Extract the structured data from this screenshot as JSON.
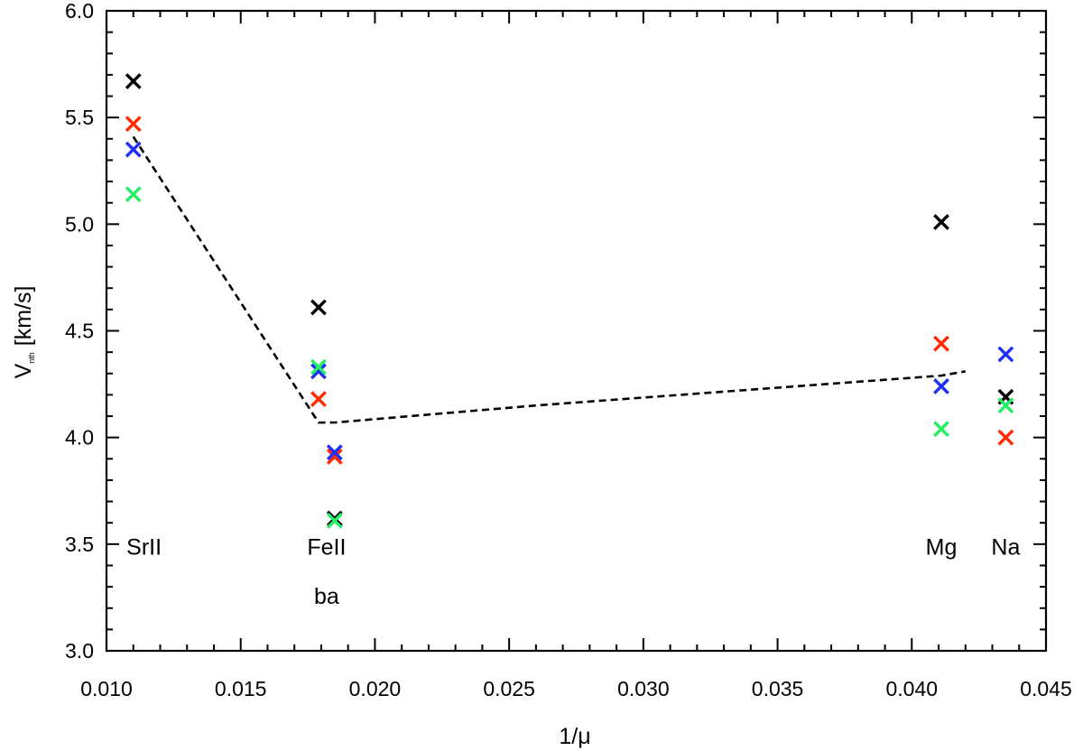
{
  "chart_data": {
    "type": "scatter",
    "title": "",
    "xlabel": "1/μ",
    "ylabel": "V",
    "ylabel_subscript": "nth",
    "ylabel_unit": " [km/s]",
    "xlim": [
      0.01,
      0.045
    ],
    "ylim": [
      3.0,
      6.0
    ],
    "x_ticks": [
      0.01,
      0.015,
      0.02,
      0.025,
      0.03,
      0.035,
      0.04,
      0.045
    ],
    "x_tick_labels": [
      "0.010",
      "0.015",
      "0.020",
      "0.025",
      "0.030",
      "0.035",
      "0.040",
      "0.045"
    ],
    "y_ticks": [
      3.0,
      3.5,
      4.0,
      4.5,
      5.0,
      5.5,
      6.0
    ],
    "y_tick_labels": [
      "3.0",
      "3.5",
      "4.0",
      "4.5",
      "5.0",
      "5.5",
      "6.0"
    ],
    "grid": false,
    "marker": "x",
    "series": [
      {
        "color": "#000000",
        "points": [
          [
            0.011,
            5.67
          ],
          [
            0.0179,
            4.61
          ],
          [
            0.0185,
            3.62
          ],
          [
            0.0411,
            5.01
          ],
          [
            0.0435,
            4.19
          ]
        ]
      },
      {
        "color": "#ff2a00",
        "points": [
          [
            0.011,
            5.47
          ],
          [
            0.0179,
            4.18
          ],
          [
            0.0185,
            3.91
          ],
          [
            0.0411,
            4.44
          ],
          [
            0.0435,
            4.0
          ]
        ]
      },
      {
        "color": "#1f2ff5",
        "points": [
          [
            0.011,
            5.35
          ],
          [
            0.0179,
            4.31
          ],
          [
            0.0185,
            3.93
          ],
          [
            0.0411,
            4.24
          ],
          [
            0.0435,
            4.39
          ]
        ]
      },
      {
        "color": "#22ee66",
        "points": [
          [
            0.011,
            5.14
          ],
          [
            0.0179,
            4.33
          ],
          [
            0.0185,
            3.61
          ],
          [
            0.0411,
            4.04
          ],
          [
            0.0435,
            4.15
          ]
        ]
      }
    ],
    "trend_line": {
      "style": "dashed",
      "color": "#000000",
      "points": [
        [
          0.011,
          5.41
        ],
        [
          0.0179,
          4.07
        ],
        [
          0.0185,
          4.07
        ],
        [
          0.026,
          4.15
        ],
        [
          0.0411,
          4.29
        ],
        [
          0.042,
          4.31
        ]
      ]
    },
    "annotations": [
      {
        "text": "SrII",
        "x": 0.0114,
        "y": 3.45
      },
      {
        "text": "FeII",
        "x": 0.0182,
        "y": 3.45
      },
      {
        "text": "ba",
        "x": 0.0182,
        "y": 3.22
      },
      {
        "text": "Mg",
        "x": 0.0411,
        "y": 3.45
      },
      {
        "text": "Na",
        "x": 0.0435,
        "y": 3.45
      }
    ]
  }
}
